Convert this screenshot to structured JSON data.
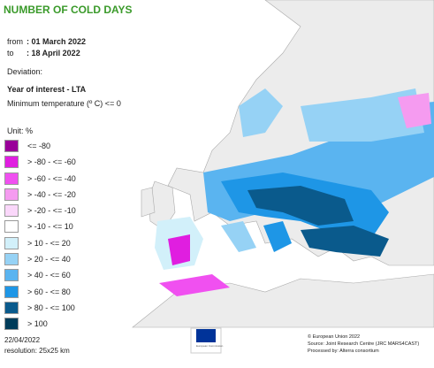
{
  "header": {
    "title": "NUMBER OF COLD DAYS",
    "from_label": "from",
    "from_value": ": 01 March 2022",
    "to_label": "to",
    "to_value": ": 18 April 2022",
    "deviation": "Deviation:",
    "subject": "Year of interest - LTA",
    "criterion": "Minimum temperature (º C) <= 0"
  },
  "legend": {
    "unit": "Unit: %",
    "items": [
      {
        "label": "<= -80",
        "color": "#990099"
      },
      {
        "label": "> -80 - <= -60",
        "color": "#e01ee0"
      },
      {
        "label": "> -60 - <= -40",
        "color": "#f050f0"
      },
      {
        "label": "> -40 - <= -20",
        "color": "#f59bf0"
      },
      {
        "label": "> -20 - <= -10",
        "color": "#fad7fa"
      },
      {
        "label": "> -10 - <= 10",
        "color": "#ffffff"
      },
      {
        "label": "> 10 - <= 20",
        "color": "#d2f0fa"
      },
      {
        "label": "> 20 - <= 40",
        "color": "#96d2f5"
      },
      {
        "label": "> 40 - <= 60",
        "color": "#5ab4f0"
      },
      {
        "label": "> 60 - <= 80",
        "color": "#1e96e6"
      },
      {
        "label": "> 80 - <= 100",
        "color": "#0a5a8c"
      },
      {
        "label": "> 100",
        "color": "#003c5a"
      }
    ]
  },
  "footer": {
    "date": "22/04/2022",
    "resolution": "resolution: 25x25 km",
    "logo_text": "European Commission",
    "copyright": "© European Union 2022",
    "source": "Source: Joint Research Centre (JRC MARS4CAST)",
    "processed": "Processed by: Alterra consortium"
  }
}
